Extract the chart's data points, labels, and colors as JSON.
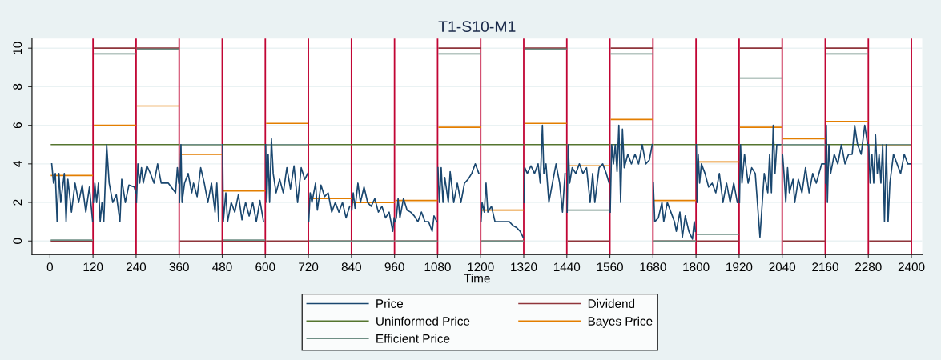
{
  "chart_data": {
    "type": "line",
    "title": "T1-S10-M1",
    "xlabel": "Time",
    "xlim": [
      -50,
      2430
    ],
    "xticks": [
      0,
      120,
      240,
      360,
      480,
      600,
      720,
      840,
      960,
      1080,
      1200,
      1320,
      1440,
      1560,
      1680,
      1800,
      1920,
      2040,
      2160,
      2280,
      2400
    ],
    "ylim": [
      -0.7,
      10.5
    ],
    "yticks": [
      0,
      2,
      4,
      6,
      8,
      10
    ],
    "grid": "y",
    "legend": "bottom",
    "marker": "none",
    "line_style": "solid",
    "x": [
      4,
      118,
      119,
      124,
      238,
      239,
      244,
      358,
      359,
      364,
      478,
      479,
      484,
      598,
      599,
      604,
      718,
      719,
      724,
      838,
      839,
      844,
      958,
      959,
      964,
      1078,
      1079,
      1084,
      1198,
      1199,
      1204,
      1318,
      1319,
      1324,
      1438,
      1439,
      1444,
      1558,
      1559,
      1564,
      1678,
      1679,
      1684,
      1798,
      1799,
      1804,
      1918,
      1919,
      1924,
      2038,
      2039,
      2044,
      2158,
      2159,
      2164,
      2278,
      2279,
      2284,
      2398
    ],
    "series": [
      {
        "name": "Price",
        "color": "#1a476f",
        "x": [
          5,
          10,
          15,
          20,
          25,
          30,
          40,
          45,
          50,
          60,
          70,
          80,
          90,
          100,
          110,
          119,
          120,
          121,
          125,
          130,
          135,
          140,
          145,
          150,
          155,
          158,
          165,
          175,
          185,
          195,
          200,
          210,
          220,
          235,
          239,
          240,
          241,
          245,
          250,
          255,
          260,
          270,
          280,
          290,
          300,
          310,
          330,
          350,
          355,
          359,
          360,
          361,
          365,
          368,
          375,
          385,
          395,
          400,
          410,
          420,
          430,
          440,
          450,
          460,
          465,
          470,
          480,
          481,
          483,
          490,
          495,
          505,
          515,
          525,
          535,
          545,
          555,
          565,
          575,
          585,
          595,
          600,
          601,
          604,
          608,
          612,
          617,
          622,
          630,
          640,
          650,
          660,
          670,
          680,
          690,
          700,
          710,
          718,
          720,
          721,
          725,
          730,
          740,
          745,
          755,
          765,
          775,
          785,
          795,
          805,
          815,
          825,
          835,
          840,
          841,
          845,
          850,
          858,
          865,
          875,
          885,
          895,
          905,
          915,
          925,
          935,
          945,
          955,
          959,
          960,
          961,
          965,
          970,
          975,
          985,
          995,
          1005,
          1015,
          1025,
          1035,
          1045,
          1055,
          1065,
          1070,
          1078,
          1080,
          1081,
          1085,
          1090,
          1095,
          1100,
          1110,
          1115,
          1125,
          1135,
          1145,
          1155,
          1165,
          1175,
          1185,
          1195,
          1200,
          1201,
          1204,
          1210,
          1215,
          1220,
          1230,
          1240,
          1260,
          1280,
          1290,
          1300,
          1310,
          1318,
          1320,
          1321,
          1323,
          1330,
          1340,
          1350,
          1360,
          1366,
          1372,
          1376,
          1382,
          1390,
          1400,
          1410,
          1420,
          1428,
          1435,
          1440,
          1441,
          1444,
          1448,
          1455,
          1465,
          1475,
          1485,
          1495,
          1505,
          1512,
          1518,
          1530,
          1540,
          1550,
          1558,
          1560,
          1561,
          1565,
          1570,
          1575,
          1580,
          1585,
          1590,
          1595,
          1600,
          1610,
          1620,
          1630,
          1640,
          1650,
          1660,
          1670,
          1678,
          1680,
          1681,
          1685,
          1695,
          1705,
          1710,
          1720,
          1730,
          1740,
          1745,
          1755,
          1762,
          1770,
          1780,
          1790,
          1795,
          1798,
          1800,
          1801,
          1803,
          1806,
          1810,
          1815,
          1825,
          1835,
          1845,
          1855,
          1865,
          1875,
          1885,
          1895,
          1905,
          1915,
          1920,
          1921,
          1924,
          1928,
          1935,
          1945,
          1955,
          1965,
          1978,
          1990,
          2000,
          2005,
          2010,
          2015,
          2020,
          2025,
          2035,
          2040,
          2041,
          2045,
          2050,
          2055,
          2060,
          2070,
          2075,
          2085,
          2095,
          2105,
          2115,
          2125,
          2135,
          2150,
          2158,
          2160,
          2161,
          2163,
          2166,
          2170,
          2175,
          2185,
          2195,
          2205,
          2215,
          2225,
          2235,
          2242,
          2250,
          2260,
          2270,
          2278,
          2280,
          2281,
          2285,
          2290,
          2295,
          2300,
          2305,
          2310,
          2315,
          2320,
          2325,
          2330,
          2335,
          2340,
          2350,
          2360,
          2370,
          2380,
          2390,
          2398
        ],
        "values": [
          4.0,
          3.0,
          3.5,
          1.0,
          3.5,
          2.0,
          3.5,
          1.0,
          3.2,
          1.5,
          3.0,
          2.0,
          2.9,
          1.5,
          2.8,
          1.0,
          null,
          2.0,
          3.0,
          2.0,
          3.0,
          1.0,
          2.0,
          1.0,
          3.5,
          5.0,
          3.0,
          2.0,
          2.4,
          1.0,
          3.2,
          2.0,
          2.9,
          2.8,
          2.5,
          null,
          2.0,
          4.0,
          3.0,
          3.8,
          3.0,
          3.9,
          3.5,
          3.0,
          4.0,
          3.0,
          3.0,
          2.5,
          3.8,
          3.0,
          null,
          2.0,
          5.0,
          2.0,
          3.0,
          3.5,
          2.5,
          3.0,
          2.3,
          3.8,
          3.0,
          2.0,
          3.0,
          1.5,
          3.0,
          1.0,
          null,
          5.0,
          1.0,
          2.5,
          1.0,
          2.0,
          1.5,
          2.4,
          1.1,
          2.0,
          1.3,
          2.0,
          1.0,
          2.1,
          1.0,
          null,
          5.0,
          2.0,
          4.5,
          2.0,
          5.3,
          3.5,
          2.5,
          3.2,
          2.5,
          3.8,
          2.7,
          3.9,
          2.0,
          3.8,
          3.2,
          3.5,
          null,
          1.0,
          2.5,
          2.0,
          3.0,
          1.6,
          2.9,
          2.3,
          2.5,
          1.5,
          2.0,
          1.5,
          2.0,
          1.2,
          1.8,
          null,
          1.6,
          2.5,
          1.7,
          3.0,
          2.0,
          2.8,
          2.0,
          1.8,
          2.2,
          1.5,
          1.8,
          1.2,
          1.5,
          0.5,
          1.2,
          null,
          1.0,
          1.2,
          2.2,
          1.2,
          2.2,
          1.6,
          1.5,
          1.3,
          1.0,
          1.5,
          1.0,
          1.0,
          0.5,
          1.3,
          1.0,
          null,
          3.8,
          2.0,
          3.8,
          2.0,
          3.3,
          2.0,
          3.6,
          2.0,
          3.0,
          2.0,
          3.0,
          3.2,
          3.5,
          4.0,
          3.5,
          null,
          1.0,
          2.0,
          1.5,
          3.0,
          1.5,
          1.8,
          1.0,
          1.0,
          1.0,
          0.8,
          0.7,
          0.5,
          0.2,
          null,
          2.0,
          3.8,
          3.5,
          3.9,
          3.5,
          4.0,
          3.0,
          6.0,
          3.5,
          4.0,
          2.0,
          3.0,
          4.0,
          3.0,
          1.5,
          3.5,
          null,
          1.5,
          5.0,
          3.0,
          3.8,
          3.5,
          4.0,
          3.5,
          3.8,
          2.0,
          3.5,
          2.0,
          3.8,
          4.0,
          3.5,
          3.0,
          null,
          1.5,
          5.0,
          4.0,
          5.0,
          3.6,
          6.0,
          2.0,
          5.8,
          3.8,
          4.5,
          4.0,
          4.5,
          4.0,
          5.0,
          4.0,
          4.2,
          5.0,
          null,
          3.0,
          1.0,
          1.2,
          2.0,
          1.0,
          2.0,
          1.5,
          1.0,
          0.5,
          1.5,
          0.2,
          1.3,
          0.5,
          0.1,
          1.0,
          0.5,
          null,
          5.0,
          2.0,
          4.5,
          3.0,
          4.0,
          3.5,
          2.8,
          3.0,
          2.5,
          3.5,
          2.0,
          3.0,
          2.0,
          3.0,
          2.0,
          null,
          2.0,
          5.0,
          3.0,
          4.5,
          3.0,
          3.8,
          3.5,
          0.2,
          3.5,
          2.5,
          4.5,
          2.5,
          6.0,
          3.5,
          5.0,
          5.0,
          null,
          4.5,
          3.5,
          2.0,
          3.8,
          2.5,
          3.2,
          2.0,
          3.2,
          2.5,
          3.8,
          2.5,
          3.5,
          3.0,
          4.0,
          4.0,
          null,
          3.0,
          6.0,
          2.0,
          5.0,
          3.5,
          4.5,
          4.0,
          5.0,
          4.0,
          4.5,
          4.5,
          6.0,
          5.0,
          4.5,
          6.0,
          5.0,
          null,
          5.0,
          3.0,
          4.5,
          3.0,
          5.5,
          3.5,
          4.5,
          3.0,
          5.0,
          1.0,
          5.0,
          1.0,
          3.0,
          4.5,
          4.0,
          3.5,
          4.5,
          4.0,
          4.0
        ]
      },
      {
        "name": "Dividend",
        "color": "#90353b",
        "values": [
          0,
          0,
          null,
          10,
          10,
          null,
          10,
          10,
          null,
          0,
          0,
          null,
          0,
          0,
          null,
          0,
          0,
          null,
          0,
          0,
          null,
          0,
          0,
          null,
          0,
          0,
          null,
          10,
          10,
          null,
          0,
          0,
          null,
          10,
          10,
          null,
          0,
          0,
          null,
          10,
          10,
          null,
          0,
          0,
          null,
          0,
          0,
          null,
          10,
          10,
          null,
          0,
          0,
          null,
          10,
          10,
          null,
          0,
          0
        ]
      },
      {
        "name": "Uninformed Price",
        "color": "#55752f",
        "values": [
          5,
          5,
          null,
          5,
          5,
          null,
          5,
          5,
          null,
          5,
          5,
          null,
          5,
          5,
          null,
          5,
          5,
          null,
          5,
          5,
          null,
          5,
          5,
          null,
          5,
          5,
          null,
          5,
          5,
          null,
          5,
          5,
          null,
          5,
          5,
          null,
          5,
          5,
          null,
          5,
          5,
          null,
          5,
          5,
          null,
          5,
          5,
          null,
          5,
          5,
          null,
          5,
          5,
          null,
          5,
          5,
          null,
          5,
          5
        ]
      },
      {
        "name": "Bayes Price",
        "color": "#e37e00",
        "values": [
          3.4,
          3.4,
          null,
          6.0,
          6.0,
          null,
          7.0,
          7.0,
          null,
          4.5,
          4.5,
          null,
          2.6,
          2.6,
          null,
          6.1,
          6.1,
          null,
          2.2,
          2.2,
          null,
          2.0,
          2.0,
          null,
          2.1,
          2.1,
          null,
          5.9,
          5.9,
          null,
          1.6,
          1.6,
          null,
          6.1,
          6.1,
          null,
          3.9,
          3.9,
          null,
          6.3,
          6.3,
          null,
          2.1,
          2.1,
          null,
          4.1,
          4.1,
          null,
          5.9,
          5.9,
          null,
          5.3,
          5.3,
          null,
          6.2,
          6.2,
          null,
          5.0,
          5.0
        ]
      },
      {
        "name": "Efficient Price",
        "color": "#6e8e84",
        "values": [
          0.05,
          0.05,
          null,
          9.7,
          9.7,
          null,
          9.95,
          9.95,
          null,
          5,
          5,
          null,
          0.05,
          0.05,
          null,
          5,
          5,
          null,
          0,
          0,
          null,
          0,
          0,
          null,
          0,
          0,
          null,
          9.7,
          9.7,
          null,
          0,
          0,
          null,
          9.95,
          9.95,
          null,
          1.6,
          1.6,
          null,
          9.7,
          9.7,
          null,
          0,
          0,
          null,
          0.35,
          0.35,
          null,
          8.45,
          8.45,
          null,
          5,
          5,
          null,
          9.7,
          9.7,
          null,
          5,
          5
        ]
      }
    ],
    "ref_lines": [
      {
        "axis": "x",
        "value": 120,
        "color": "#c10534"
      },
      {
        "axis": "x",
        "value": 240,
        "color": "#c10534"
      },
      {
        "axis": "x",
        "value": 360,
        "color": "#c10534"
      },
      {
        "axis": "x",
        "value": 480,
        "color": "#c10534"
      },
      {
        "axis": "x",
        "value": 600,
        "color": "#c10534"
      },
      {
        "axis": "x",
        "value": 720,
        "color": "#c10534"
      },
      {
        "axis": "x",
        "value": 840,
        "color": "#c10534"
      },
      {
        "axis": "x",
        "value": 960,
        "color": "#c10534"
      },
      {
        "axis": "x",
        "value": 1080,
        "color": "#c10534"
      },
      {
        "axis": "x",
        "value": 1200,
        "color": "#c10534"
      },
      {
        "axis": "x",
        "value": 1320,
        "color": "#c10534"
      },
      {
        "axis": "x",
        "value": 1440,
        "color": "#c10534"
      },
      {
        "axis": "x",
        "value": 1560,
        "color": "#c10534"
      },
      {
        "axis": "x",
        "value": 1680,
        "color": "#c10534"
      },
      {
        "axis": "x",
        "value": 1800,
        "color": "#c10534"
      },
      {
        "axis": "x",
        "value": 1920,
        "color": "#c10534"
      },
      {
        "axis": "x",
        "value": 2040,
        "color": "#c10534"
      },
      {
        "axis": "x",
        "value": 2160,
        "color": "#c10534"
      },
      {
        "axis": "x",
        "value": 2280,
        "color": "#c10534"
      },
      {
        "axis": "x",
        "value": 2400,
        "color": "#c10534"
      }
    ]
  }
}
